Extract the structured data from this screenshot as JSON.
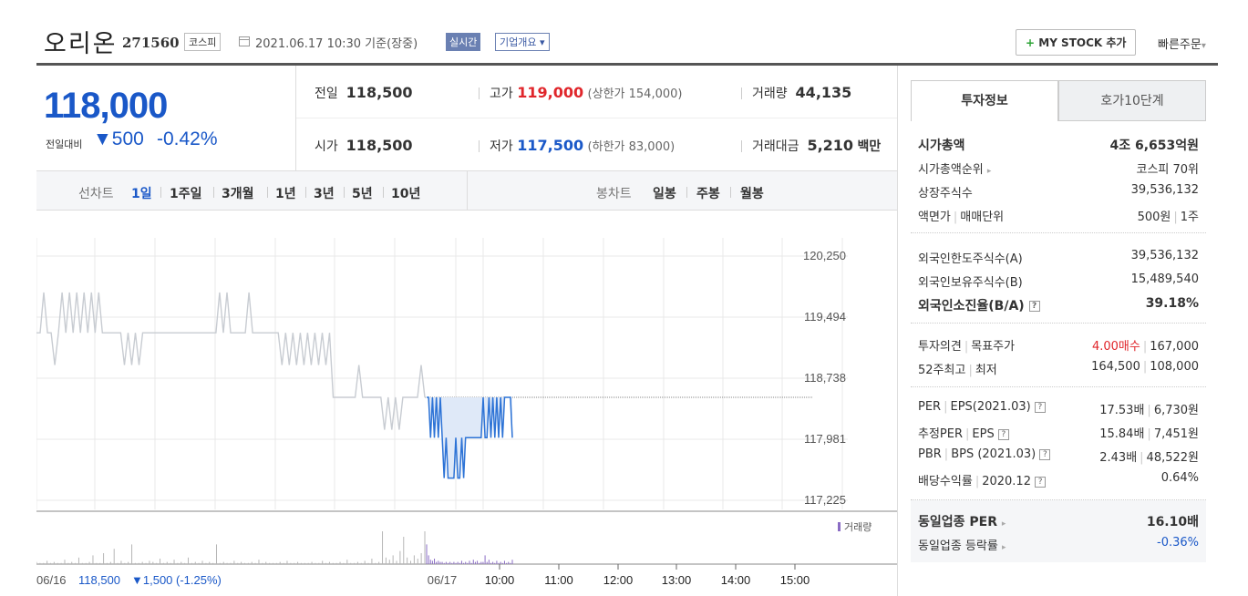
{
  "header": {
    "company": "오리온",
    "code": "271560",
    "market": "코스피",
    "date": "2021.06.17 10:30 기준(장중)",
    "realtime": "실시간",
    "overview": "기업개요",
    "overview_arrow": "▾",
    "mystock": "MY STOCK 추가",
    "mystock_plus": "+",
    "quick_order": "빠른주문",
    "quick_order_arrow": "▾"
  },
  "price": {
    "current": "118,000",
    "change_label": "전일대비",
    "change_arrow": "▼",
    "change": "500",
    "change_pct": "-0.42%"
  },
  "quote": {
    "prev_label": "전일",
    "prev": "118,500",
    "high_label": "고가",
    "high": "119,000",
    "upper_limit": "(상한가 154,000)",
    "volume_label": "거래량",
    "volume": "44,135",
    "open_label": "시가",
    "open": "118,500",
    "low_label": "저가",
    "low": "117,500",
    "lower_limit": "(하한가 83,000)",
    "amount_label": "거래대금",
    "amount": "5,210",
    "amount_unit": "백만"
  },
  "periods": {
    "line_label": "선차트",
    "line_items": [
      "1일",
      "1주일",
      "3개월",
      "1년",
      "3년",
      "5년",
      "10년"
    ],
    "candle_label": "봉차트",
    "candle_items": [
      "일봉",
      "주봉",
      "월봉"
    ]
  },
  "chart_data": {
    "type": "line",
    "ylim": [
      117225,
      120250
    ],
    "yticks": [
      "120,250",
      "119,494",
      "118,738",
      "117,981",
      "117,225"
    ],
    "xticks": [
      "06/17",
      "10:00",
      "11:00",
      "12:00",
      "13:00",
      "14:00",
      "15:00"
    ],
    "prev_close": 118500,
    "legend": "거래량",
    "footer_date": "06/16",
    "footer_value": "118,500",
    "footer_change": "▼1,500 (-1.25%)",
    "prev_day_series": [
      119300,
      119300,
      119800,
      119300,
      119300,
      118900,
      119300,
      119800,
      119300,
      119800,
      119300,
      119800,
      119300,
      119800,
      119300,
      119800,
      119300,
      119800,
      119300,
      119300,
      119300,
      119300,
      119300,
      119300,
      118900,
      119300,
      118900,
      119300,
      118900,
      119300,
      119300,
      119300,
      119300,
      119300,
      119300,
      119300,
      119300,
      119300,
      119300,
      119300,
      119300,
      119300,
      119300,
      119300,
      119300,
      119300,
      119300,
      119300,
      119300,
      119300,
      119800,
      119300,
      119800,
      119300,
      119300,
      119300,
      119300,
      119300,
      119800,
      119300,
      119300,
      119300,
      119300,
      119300,
      119300,
      119300,
      119300,
      118900,
      119300,
      118900,
      119300,
      118900,
      119300,
      118900,
      119300,
      118900,
      119300,
      118900,
      119300,
      118900,
      119300,
      118500,
      118500,
      118500,
      118500,
      118500,
      118500,
      118500,
      118900,
      118500,
      118500,
      118500,
      118500,
      118500,
      118500,
      118100,
      118500,
      118100,
      118500,
      118100,
      118500,
      118500,
      118500,
      118500,
      118500,
      118900,
      118500
    ],
    "today_series": [
      118500,
      118500,
      118000,
      118500,
      118000,
      118500,
      118000,
      118500,
      118000,
      117500,
      118000,
      117500,
      117500,
      117500,
      117500,
      118000,
      117500,
      117500,
      118000,
      117500,
      118000,
      118000,
      118000,
      118000,
      118000,
      118000,
      118000,
      118000,
      118000,
      118500,
      118000,
      118000,
      118500,
      118000,
      118500,
      118000,
      118500,
      118000,
      118500,
      118000,
      118500,
      118500,
      118500,
      118500,
      118000
    ],
    "prev_day_volume": [
      2,
      1,
      1,
      3,
      1,
      2,
      1,
      1,
      4,
      1,
      2,
      1,
      6,
      1,
      1,
      2,
      8,
      1,
      1,
      10,
      1,
      2,
      14,
      1,
      3,
      1,
      2,
      18,
      1,
      1,
      2,
      1,
      3,
      2,
      1,
      5,
      1,
      2,
      1,
      4,
      1,
      2,
      1,
      6,
      1,
      2,
      1,
      3,
      1,
      2,
      1,
      18,
      1,
      2,
      1,
      1,
      3,
      1,
      2,
      1,
      1,
      2,
      1,
      4,
      1,
      2,
      1,
      1,
      1,
      2,
      1,
      3,
      1,
      1,
      2,
      1,
      1,
      1,
      2,
      1,
      1,
      3,
      1,
      2,
      1,
      1,
      2,
      1,
      4,
      1,
      1,
      2,
      1,
      3,
      1,
      5,
      1,
      2,
      30,
      6,
      4,
      8,
      3,
      12,
      25,
      6,
      3,
      8,
      5,
      10,
      30
    ],
    "today_volume": [
      18,
      8,
      4,
      3,
      5,
      2,
      3,
      2,
      2,
      1,
      2,
      1,
      2,
      1,
      2,
      1,
      2,
      1,
      3,
      1,
      2,
      1,
      3,
      1,
      4,
      2,
      3,
      1,
      2,
      2,
      8,
      2,
      4,
      1,
      2,
      1,
      3,
      1,
      2,
      1,
      3,
      1,
      2,
      1,
      4
    ]
  },
  "tabs": {
    "active": "투자정보",
    "inactive": "호가10단계"
  },
  "info": {
    "g1": [
      {
        "l": "시가총액",
        "r": "4조 6,653억원",
        "big": true
      },
      {
        "l": "시가총액순위",
        "arrow": "▸",
        "r": "코스피 70위"
      },
      {
        "l": "상장주식수",
        "r": "39,536,132"
      },
      {
        "l": "액면가",
        "l2": "매매단위",
        "r": "500원",
        "r2": "1주"
      }
    ],
    "g2": [
      {
        "l": "외국인한도주식수(A)",
        "r": "39,536,132"
      },
      {
        "l": "외국인보유주식수(B)",
        "r": "15,489,540"
      },
      {
        "l": "외국인소진율(B/A)",
        "q": "?",
        "r": "39.18%",
        "big": true
      }
    ],
    "g3": [
      {
        "l": "투자의견",
        "l2": "목표주가",
        "r": "4.00매수",
        "r2": "167,000",
        "rcolor": "red"
      },
      {
        "l": "52주최고",
        "l2": "최저",
        "r": "164,500",
        "r2": "108,000"
      }
    ],
    "g4": [
      {
        "l": "PER",
        "l2": "EPS(2021.03)",
        "q": "?",
        "r": "17.53배",
        "r2": "6,730원"
      },
      {
        "l": "추정PER",
        "l2": "EPS",
        "q": "?",
        "r": "15.84배",
        "r2": "7,451원"
      },
      {
        "l": "PBR",
        "l2": "BPS (2021.03)",
        "q": "?",
        "r": "2.43배",
        "r2": "48,522원"
      },
      {
        "l": "배당수익률",
        "l2": "2020.12",
        "q": "?",
        "r": "0.64%"
      }
    ],
    "g5": [
      {
        "l": "동일업종 PER",
        "arrow": "▸",
        "r": "16.10배",
        "big": true
      },
      {
        "l": "동일업종 등락률",
        "arrow": "▸",
        "r": "-0.36%",
        "rcolor": "blue"
      }
    ]
  }
}
